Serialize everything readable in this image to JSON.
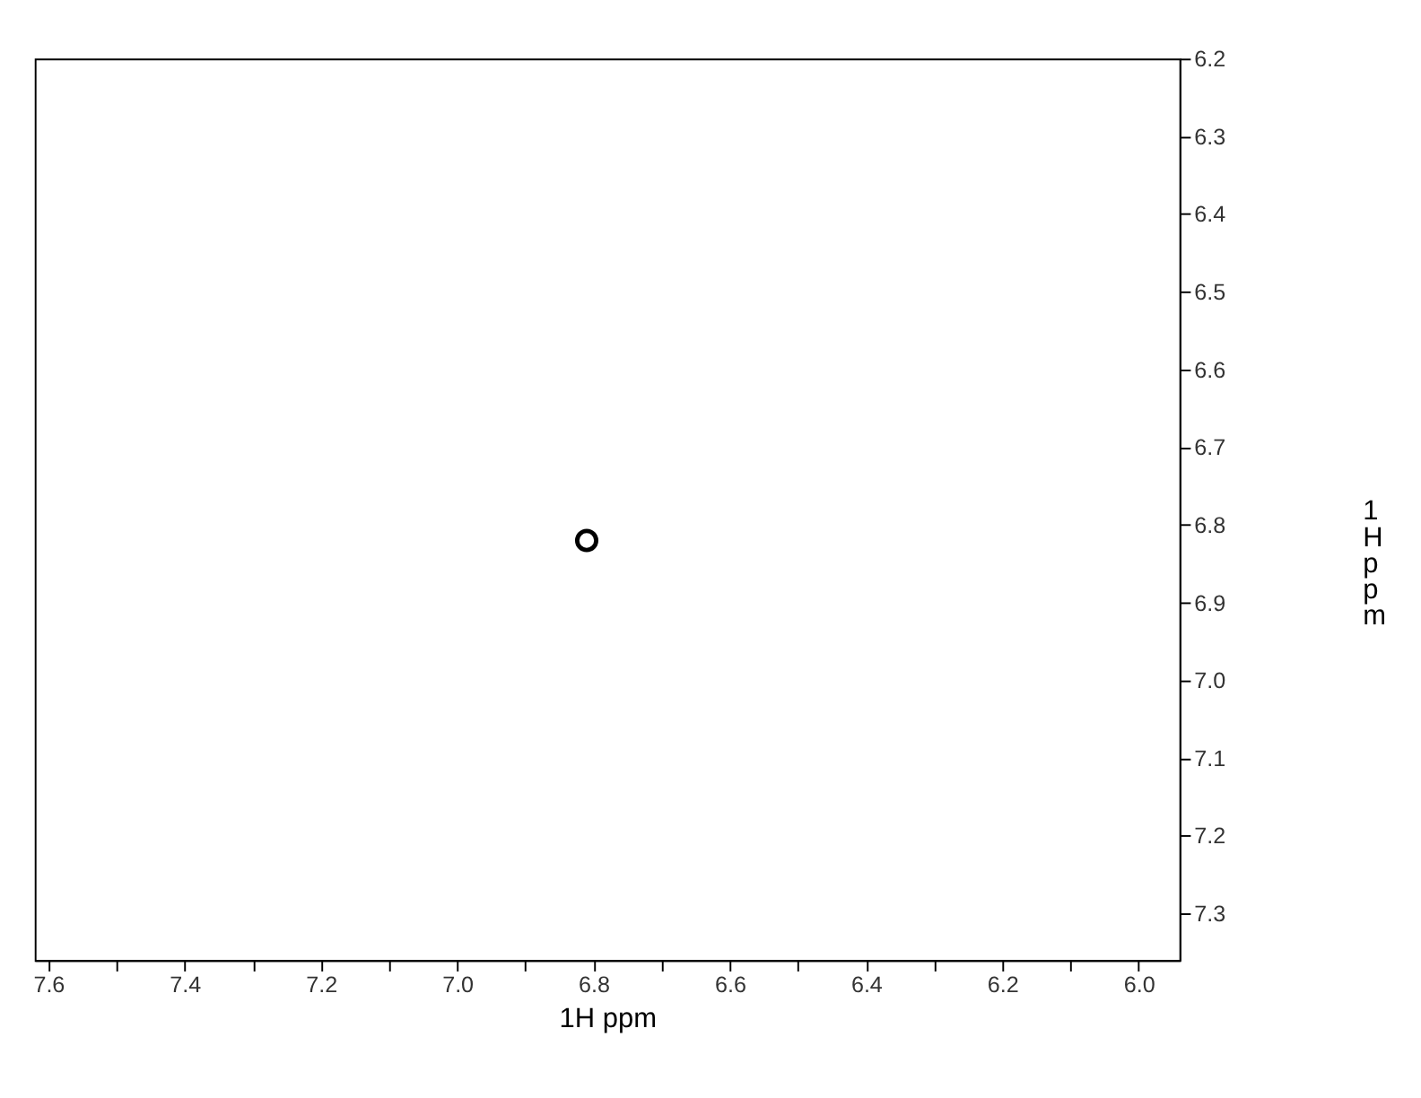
{
  "chart_data": {
    "type": "scatter",
    "xlabel": "1H ppm",
    "ylabel": "1H ppm",
    "x": [
      6.81
    ],
    "values": [
      6.82
    ],
    "color": "#000000",
    "xlim": [
      7.62,
      5.94
    ],
    "ylim": [
      7.36,
      6.2
    ],
    "xticks": [
      7.6,
      {
        "value": 7.5,
        "label": null
      },
      7.4,
      {
        "value": 7.3,
        "label": null
      },
      7.2,
      {
        "value": 7.1,
        "label": null
      },
      {
        "value": 7,
        "label": "7.0"
      },
      {
        "value": 6.9,
        "label": null
      },
      6.8,
      {
        "value": 6.7,
        "label": null
      },
      6.6,
      {
        "value": 6.5,
        "label": null
      },
      6.4,
      {
        "value": 6.3,
        "label": null
      },
      6.2,
      {
        "value": 6.1,
        "label": null
      },
      {
        "value": 6,
        "label": "6.0"
      }
    ],
    "yticks": [
      6.2,
      6.3,
      6.4,
      6.5,
      6.6,
      6.7,
      6.8,
      6.9,
      {
        "value": 7,
        "label": "7.0"
      },
      7.1,
      7.2,
      7.3
    ],
    "grid": false,
    "marker": "circle"
  }
}
